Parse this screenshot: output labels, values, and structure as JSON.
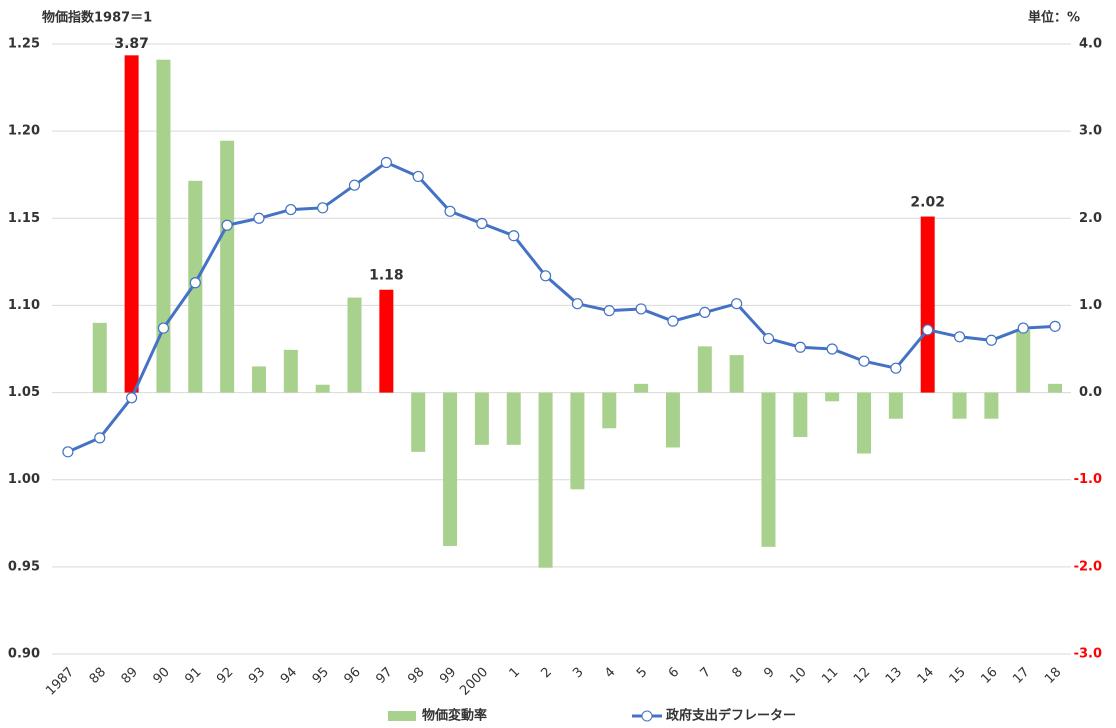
{
  "chart_data": {
    "type": "bar_line",
    "y_label": "物価指数1987＝1",
    "y2_label": "単位：%",
    "categories": [
      "1987",
      "88",
      "89",
      "90",
      "91",
      "92",
      "93",
      "94",
      "95",
      "96",
      "97",
      "98",
      "99",
      "2000",
      "1",
      "2",
      "3",
      "4",
      "5",
      "6",
      "7",
      "8",
      "9",
      "10",
      "11",
      "12",
      "13",
      "14",
      "15",
      "16",
      "17",
      "18"
    ],
    "series": [
      {
        "name": "物価変動率",
        "type": "bar",
        "axis": "y2",
        "color": "#a9d18e",
        "colors": [
          "#a9d18e",
          "#a9d18e",
          "#ff0000",
          "#a9d18e",
          "#a9d18e",
          "#a9d18e",
          "#a9d18e",
          "#a9d18e",
          "#a9d18e",
          "#a9d18e",
          "#ff0000",
          "#a9d18e",
          "#a9d18e",
          "#a9d18e",
          "#a9d18e",
          "#a9d18e",
          "#a9d18e",
          "#a9d18e",
          "#a9d18e",
          "#a9d18e",
          "#a9d18e",
          "#a9d18e",
          "#a9d18e",
          "#a9d18e",
          "#a9d18e",
          "#a9d18e",
          "#a9d18e",
          "#ff0000",
          "#a9d18e",
          "#a9d18e",
          "#a9d18e",
          "#a9d18e"
        ],
        "values": [
          null,
          0.8,
          3.87,
          3.82,
          2.43,
          2.89,
          0.3,
          0.49,
          0.09,
          1.09,
          1.18,
          -0.68,
          -1.76,
          -0.6,
          -0.6,
          -2.01,
          -1.11,
          -0.41,
          0.1,
          -0.63,
          0.53,
          0.43,
          -1.77,
          -0.51,
          -0.1,
          -0.7,
          -0.3,
          2.02,
          -0.3,
          -0.3,
          0.72,
          0.1
        ],
        "value_labels": [
          null,
          null,
          "3.87",
          null,
          null,
          null,
          null,
          null,
          null,
          null,
          "1.18",
          null,
          null,
          null,
          null,
          null,
          null,
          null,
          null,
          null,
          null,
          null,
          null,
          null,
          null,
          null,
          null,
          "2.02",
          null,
          null,
          null,
          null
        ]
      },
      {
        "name": "政府支出デフレーター",
        "type": "line",
        "axis": "y",
        "color": "#4472c4",
        "values": [
          1.016,
          1.024,
          1.047,
          1.087,
          1.113,
          1.146,
          1.15,
          1.155,
          1.156,
          1.169,
          1.182,
          1.174,
          1.154,
          1.147,
          1.14,
          1.117,
          1.101,
          1.097,
          1.098,
          1.091,
          1.096,
          1.101,
          1.081,
          1.076,
          1.075,
          1.068,
          1.064,
          1.086,
          1.082,
          1.08,
          1.087,
          1.088
        ]
      }
    ],
    "ylim": [
      0.9,
      1.25
    ],
    "yticks": [
      1.25,
      {
        "value": 1.2,
        "label": "1.20"
      },
      1.15,
      {
        "value": 1.1,
        "label": "1.10"
      },
      1.05,
      {
        "value": 1,
        "label": "1.00"
      },
      0.95,
      {
        "value": 0.9,
        "label": "0.90"
      }
    ],
    "y2lim": [
      -3,
      4
    ],
    "y2ticks": [
      {
        "value": 4,
        "label": "4.0"
      },
      {
        "value": 3,
        "label": "3.0"
      },
      {
        "value": 2,
        "label": "2.0"
      },
      {
        "value": 1,
        "label": "1.0"
      },
      {
        "value": 0,
        "label": "0.0"
      },
      {
        "value": -1,
        "label": "-1.0"
      },
      {
        "value": -2,
        "label": "-2.0"
      },
      {
        "value": -3,
        "label": "-3.0"
      }
    ],
    "negative_tick_color": "#ff0000",
    "grid": true,
    "legend": "bottom"
  }
}
